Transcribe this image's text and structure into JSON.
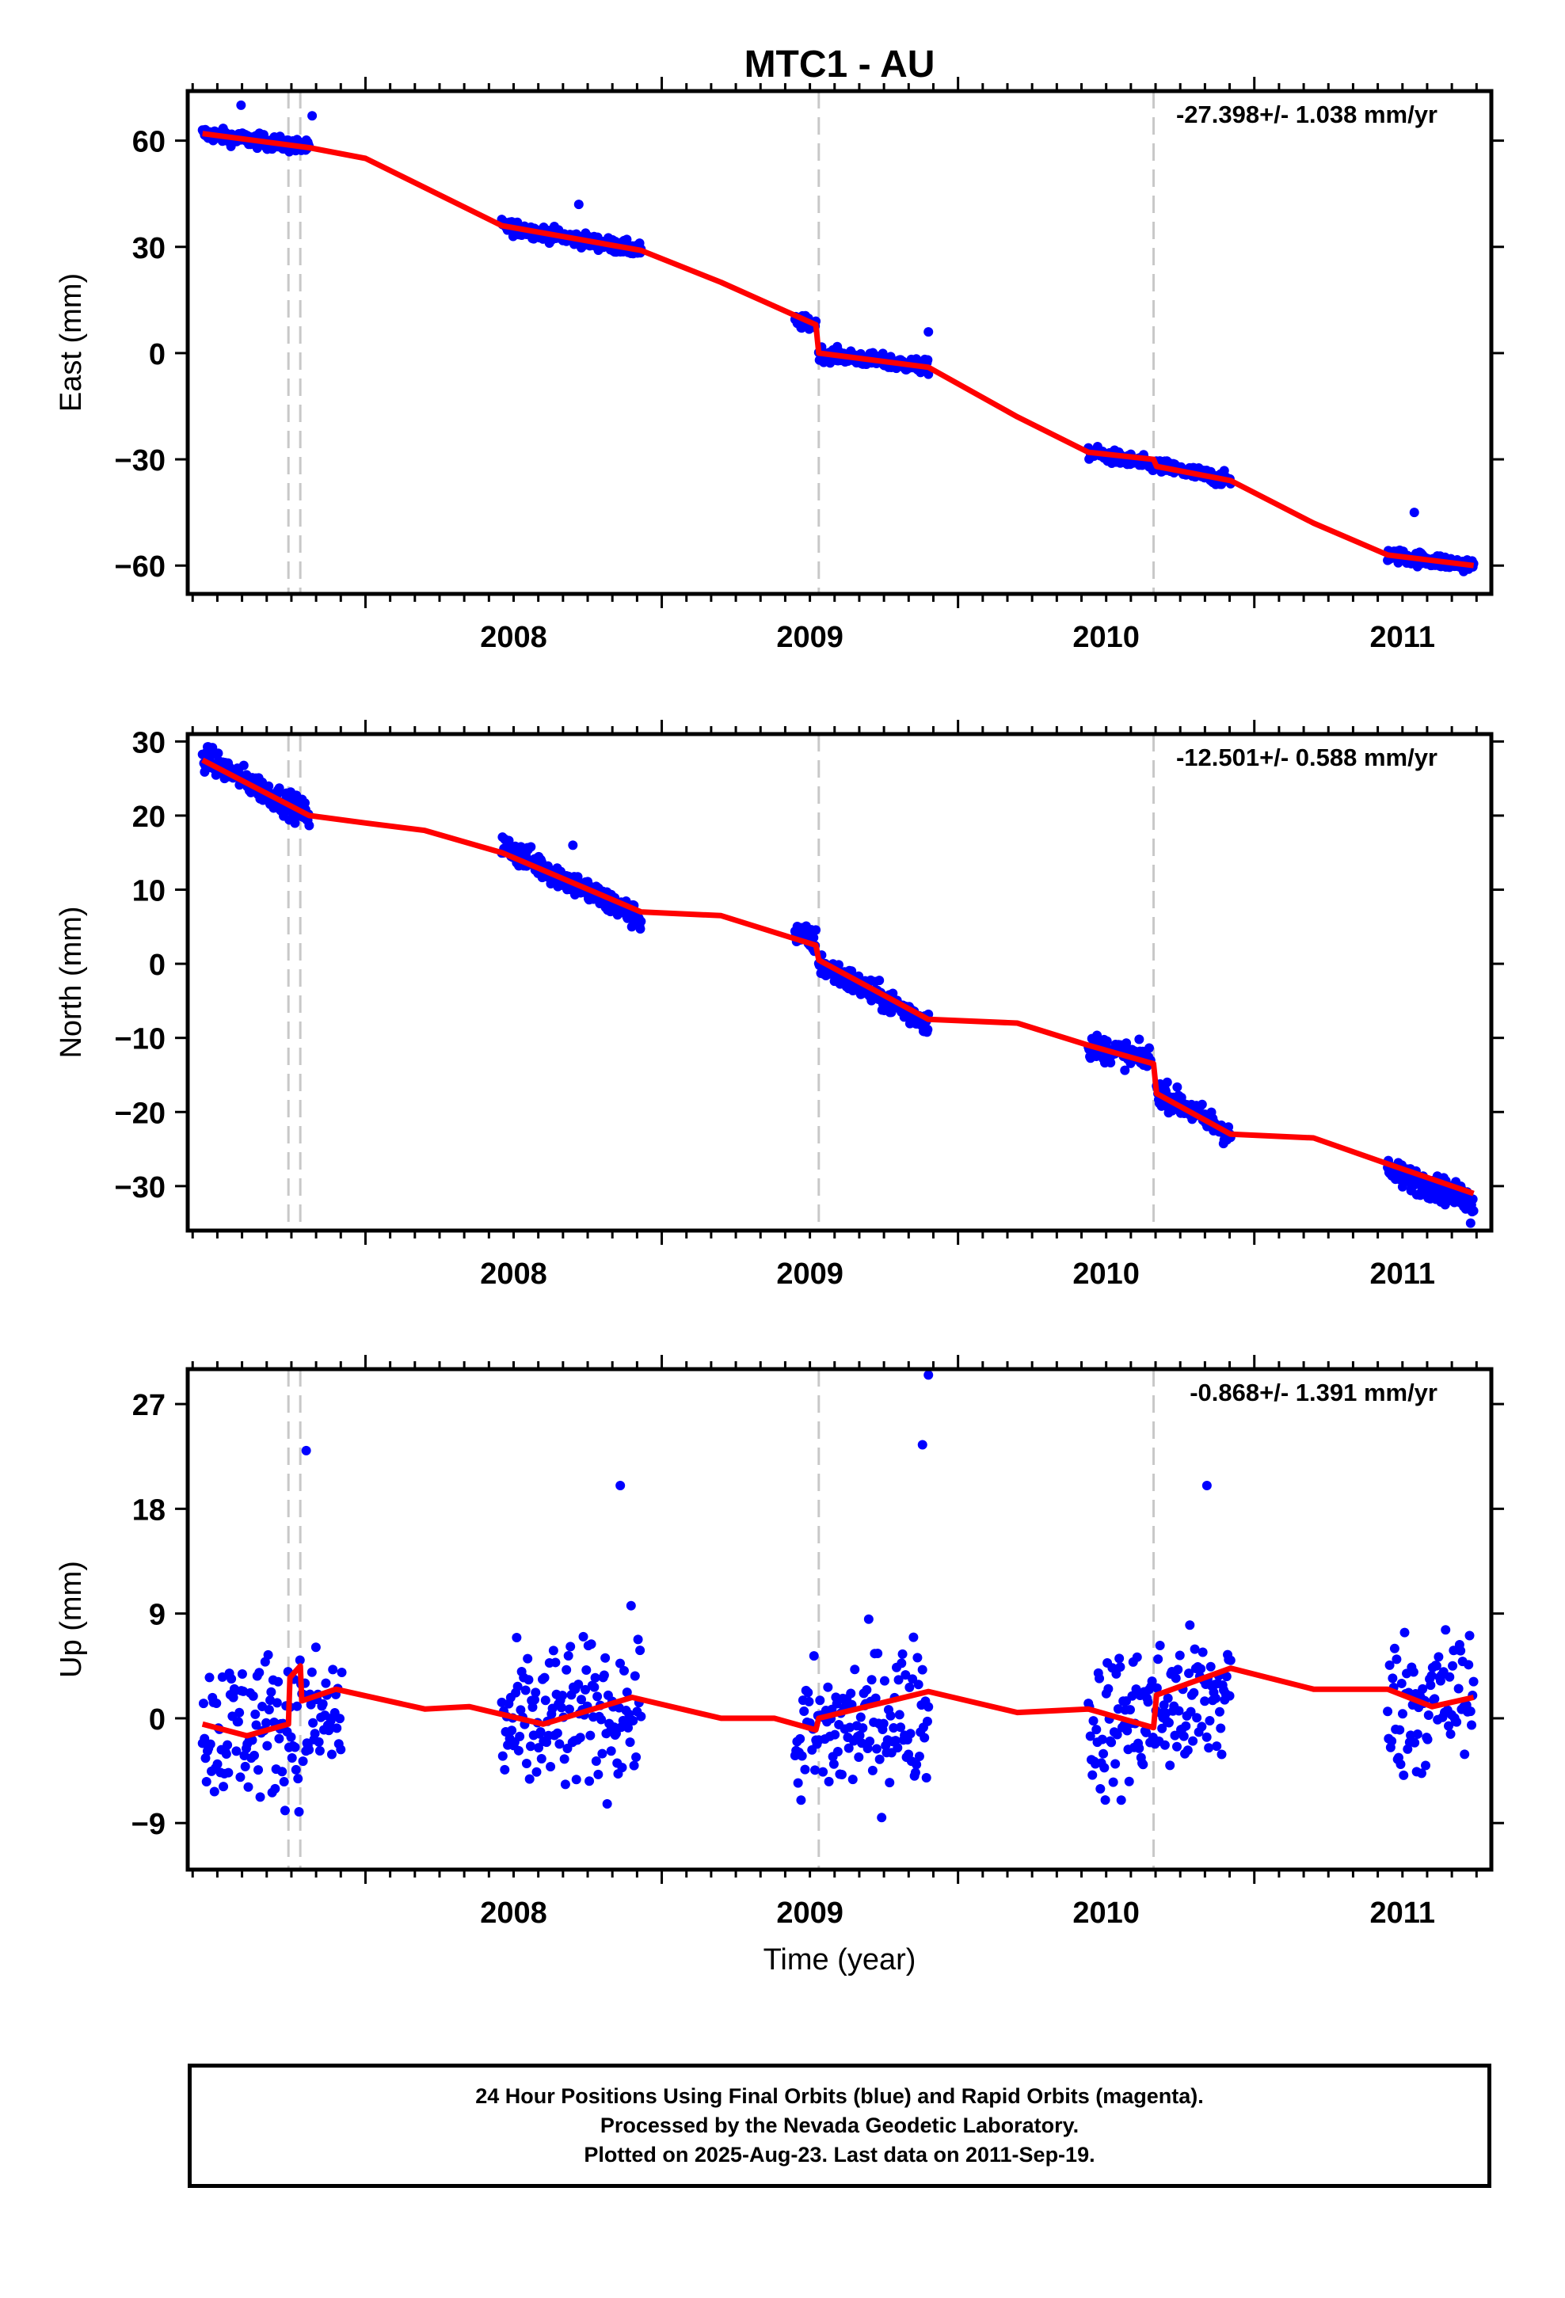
{
  "title": "MTC1 - AU",
  "colors": {
    "final_orbits": "#0000ff",
    "model": "#ff0000",
    "offsets": "#c8c8c8",
    "axes": "#000000"
  },
  "chart_data": [
    {
      "type": "scatter",
      "component": "East",
      "ylabel": "East (mm)",
      "rate_label": "-27.398+/- 1.038 mm/yr",
      "xlim": [
        2007.4,
        2011.8
      ],
      "ylim": [
        -68,
        74
      ],
      "yticks": [
        60,
        30,
        0,
        -30,
        -60
      ],
      "xticks": [
        2008,
        2009,
        2010,
        2011
      ],
      "offset_lines": [
        2007.74,
        2007.78,
        2009.53,
        2010.66
      ],
      "segments": [
        {
          "x": [
            2007.45,
            2007.81
          ],
          "y": [
            62,
            58
          ]
        },
        {
          "x": [
            2008.46,
            2008.93
          ],
          "y": [
            36,
            29
          ]
        },
        {
          "x": [
            2009.45,
            2009.52
          ],
          "y": [
            9,
            8
          ]
        },
        {
          "x": [
            2009.53,
            2009.9
          ],
          "y": [
            0,
            -4
          ]
        },
        {
          "x": [
            2010.44,
            2010.92
          ],
          "y": [
            -28,
            -36
          ]
        },
        {
          "x": [
            2011.45,
            2011.74
          ],
          "y": [
            -57,
            -60
          ]
        }
      ],
      "outliers": [
        {
          "x": 2009.9,
          "y": 6
        },
        {
          "x": 2011.54,
          "y": -45
        },
        {
          "x": 2008.72,
          "y": 42
        },
        {
          "x": 2007.58,
          "y": 70
        },
        {
          "x": 2007.82,
          "y": 67
        }
      ],
      "model": {
        "x": [
          2007.45,
          2007.81,
          2008.0,
          2008.46,
          2008.93,
          2009.2,
          2009.52,
          2009.53,
          2009.9,
          2010.2,
          2010.44,
          2010.66,
          2010.67,
          2010.92,
          2011.2,
          2011.45,
          2011.74
        ],
        "y": [
          62,
          58,
          55,
          36,
          29,
          20,
          8,
          0,
          -4,
          -18,
          -28,
          -30,
          -32,
          -36,
          -48,
          -57,
          -60
        ]
      }
    },
    {
      "type": "scatter",
      "component": "North",
      "ylabel": "North (mm)",
      "rate_label": "-12.501+/- 0.588 mm/yr",
      "xlim": [
        2007.4,
        2011.8
      ],
      "ylim": [
        -36,
        31
      ],
      "yticks": [
        30,
        20,
        10,
        0,
        -10,
        -20,
        -30
      ],
      "xticks": [
        2008,
        2009,
        2010,
        2011
      ],
      "offset_lines": [
        2007.74,
        2007.78,
        2009.53,
        2010.66
      ],
      "segments": [
        {
          "x": [
            2007.45,
            2007.81
          ],
          "y": [
            28,
            20
          ]
        },
        {
          "x": [
            2008.46,
            2008.93
          ],
          "y": [
            16,
            6
          ]
        },
        {
          "x": [
            2009.45,
            2009.52
          ],
          "y": [
            4,
            3
          ]
        },
        {
          "x": [
            2009.53,
            2009.9
          ],
          "y": [
            0,
            -8
          ]
        },
        {
          "x": [
            2010.44,
            2010.65
          ],
          "y": [
            -11,
            -13
          ]
        },
        {
          "x": [
            2010.67,
            2010.92
          ],
          "y": [
            -17,
            -23
          ]
        },
        {
          "x": [
            2011.45,
            2011.74
          ],
          "y": [
            -28,
            -32
          ]
        }
      ],
      "outliers": [
        {
          "x": 2011.73,
          "y": -35
        },
        {
          "x": 2008.7,
          "y": 16
        }
      ],
      "model": {
        "x": [
          2007.45,
          2007.81,
          2008.0,
          2008.2,
          2008.46,
          2008.93,
          2009.2,
          2009.52,
          2009.53,
          2009.9,
          2010.2,
          2010.44,
          2010.66,
          2010.67,
          2010.92,
          2011.2,
          2011.45,
          2011.74
        ],
        "y": [
          27.5,
          20,
          19,
          18,
          15,
          7,
          6.5,
          2.5,
          0.5,
          -7.5,
          -8,
          -11,
          -13.5,
          -17.5,
          -23,
          -23.5,
          -27,
          -31
        ]
      }
    },
    {
      "type": "scatter",
      "component": "Up",
      "ylabel": "Up (mm)",
      "xlabel": "Time (year)",
      "rate_label": "-0.868+/- 1.391 mm/yr",
      "xlim": [
        2007.4,
        2011.8
      ],
      "ylim": [
        -13,
        30
      ],
      "yticks": [
        27,
        18,
        9,
        0,
        -9
      ],
      "xticks": [
        2008,
        2009,
        2010,
        2011
      ],
      "offset_lines": [
        2007.74,
        2007.78,
        2009.53,
        2010.66
      ],
      "segments": [
        {
          "x": [
            2007.45,
            2007.92
          ],
          "y": [
            -1,
            0
          ]
        },
        {
          "x": [
            2008.46,
            2008.93
          ],
          "y": [
            -1,
            1
          ]
        },
        {
          "x": [
            2009.45,
            2009.9
          ],
          "y": [
            -2,
            1
          ]
        },
        {
          "x": [
            2010.44,
            2010.92
          ],
          "y": [
            -1,
            2
          ]
        },
        {
          "x": [
            2011.45,
            2011.74
          ],
          "y": [
            1,
            2
          ]
        }
      ],
      "outliers": [
        {
          "x": 2009.9,
          "y": 29.5
        },
        {
          "x": 2009.88,
          "y": 23.5
        },
        {
          "x": 2007.8,
          "y": 23
        },
        {
          "x": 2008.86,
          "y": 20
        },
        {
          "x": 2010.84,
          "y": 20
        }
      ],
      "model": {
        "x": [
          2007.45,
          2007.6,
          2007.74,
          2007.745,
          2007.78,
          2007.785,
          2007.9,
          2008.2,
          2008.35,
          2008.6,
          2008.9,
          2009.2,
          2009.38,
          2009.52,
          2009.53,
          2009.9,
          2010.2,
          2010.44,
          2010.66,
          2010.67,
          2010.92,
          2011.2,
          2011.45,
          2011.6,
          2011.74
        ],
        "y": [
          -0.5,
          -1.5,
          -0.5,
          3.5,
          4.5,
          1.5,
          2.5,
          0.8,
          1,
          -0.5,
          1.8,
          0,
          0,
          -1,
          0,
          2.3,
          0.5,
          0.8,
          -0.8,
          2,
          4.3,
          2.5,
          2.5,
          1,
          1.8
        ]
      }
    }
  ],
  "caption": {
    "line1": "24 Hour Positions Using Final Orbits (blue) and Rapid Orbits (magenta).",
    "line2": "Processed by the Nevada Geodetic Laboratory.",
    "line3": "Plotted on 2025-Aug-23. Last data on 2011-Sep-19."
  }
}
